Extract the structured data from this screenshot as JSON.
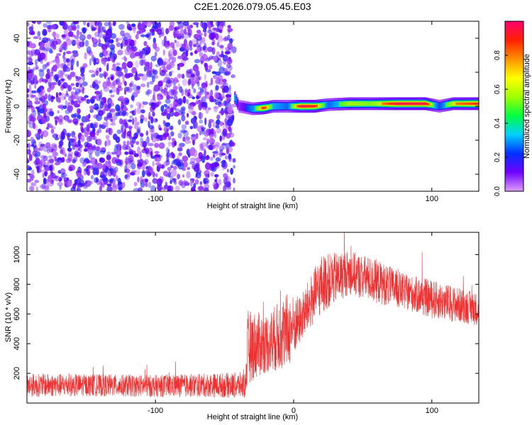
{
  "figure": {
    "title": "C2E1.2026.079.05.45.E03"
  },
  "chart_data": [
    {
      "type": "heatmap",
      "xlabel": "Height of straight line (km)",
      "ylabel": "Frequency (Hz)",
      "xlim": [
        -193,
        134
      ],
      "ylim": [
        -50,
        50
      ],
      "xticks": [
        -100,
        0,
        100
      ],
      "yticks": [
        -40,
        -20,
        0,
        20,
        40
      ],
      "colorbar": {
        "label": "Normalized spectral amplitude",
        "range": [
          0,
          1
        ],
        "ticks": [
          0.0,
          0.2,
          0.4,
          0.6,
          0.8
        ],
        "colormap": [
          "#e0a0ff",
          "#7000ff",
          "#0030ff",
          "#00d0ff",
          "#00ff40",
          "#a0ff00",
          "#ffff00",
          "#ff9000",
          "#ff2000",
          "#ff0070"
        ]
      },
      "noise_region": {
        "x_range": [
          -193,
          -43
        ],
        "f_range": [
          -50,
          50
        ],
        "typical_amplitude": 0.1
      },
      "signal_band": [
        {
          "x": -43,
          "f": 5,
          "amplitude": 0.6
        },
        {
          "x": -40,
          "f": 0,
          "amplitude": 0.3
        },
        {
          "x": -30,
          "f": -1.5,
          "amplitude": 0.55
        },
        {
          "x": -22,
          "f": -1,
          "amplitude": 0.9
        },
        {
          "x": -15,
          "f": 0,
          "amplitude": 0.6
        },
        {
          "x": -5,
          "f": 0,
          "amplitude": 0.5
        },
        {
          "x": 5,
          "f": 0,
          "amplitude": 0.95
        },
        {
          "x": 15,
          "f": 0,
          "amplitude": 0.9
        },
        {
          "x": 25,
          "f": 1,
          "amplitude": 0.5
        },
        {
          "x": 40,
          "f": 1.5,
          "amplitude": 0.75
        },
        {
          "x": 55,
          "f": 1.5,
          "amplitude": 0.7
        },
        {
          "x": 75,
          "f": 1.5,
          "amplitude": 0.95
        },
        {
          "x": 95,
          "f": 1.5,
          "amplitude": 0.95
        },
        {
          "x": 105,
          "f": 0,
          "amplitude": 0.45
        },
        {
          "x": 115,
          "f": 1.5,
          "amplitude": 0.8
        },
        {
          "x": 134,
          "f": 1.5,
          "amplitude": 0.9
        }
      ]
    },
    {
      "type": "line",
      "xlabel": "Height of straight line (km)",
      "ylabel": "SNR (10 * v/v)",
      "xlim": [
        -193,
        134
      ],
      "ylim": [
        0,
        1150
      ],
      "xticks": [
        -100,
        0,
        100
      ],
      "yticks": [
        200,
        400,
        600,
        800,
        1000
      ],
      "series_color": "#f03030",
      "envelope": [
        {
          "x": -193,
          "mean": 120,
          "spread": 80
        },
        {
          "x": -150,
          "mean": 120,
          "spread": 75
        },
        {
          "x": -100,
          "mean": 115,
          "spread": 75
        },
        {
          "x": -60,
          "mean": 120,
          "spread": 80
        },
        {
          "x": -35,
          "mean": 120,
          "spread": 90
        },
        {
          "x": -33,
          "mean": 380,
          "spread": 250
        },
        {
          "x": -20,
          "mean": 400,
          "spread": 200
        },
        {
          "x": -5,
          "mean": 480,
          "spread": 260
        },
        {
          "x": 5,
          "mean": 560,
          "spread": 160
        },
        {
          "x": 20,
          "mean": 800,
          "spread": 200
        },
        {
          "x": 40,
          "mean": 880,
          "spread": 150
        },
        {
          "x": 60,
          "mean": 820,
          "spread": 150
        },
        {
          "x": 80,
          "mean": 750,
          "spread": 120
        },
        {
          "x": 100,
          "mean": 700,
          "spread": 130
        },
        {
          "x": 134,
          "mean": 630,
          "spread": 110
        }
      ]
    }
  ]
}
